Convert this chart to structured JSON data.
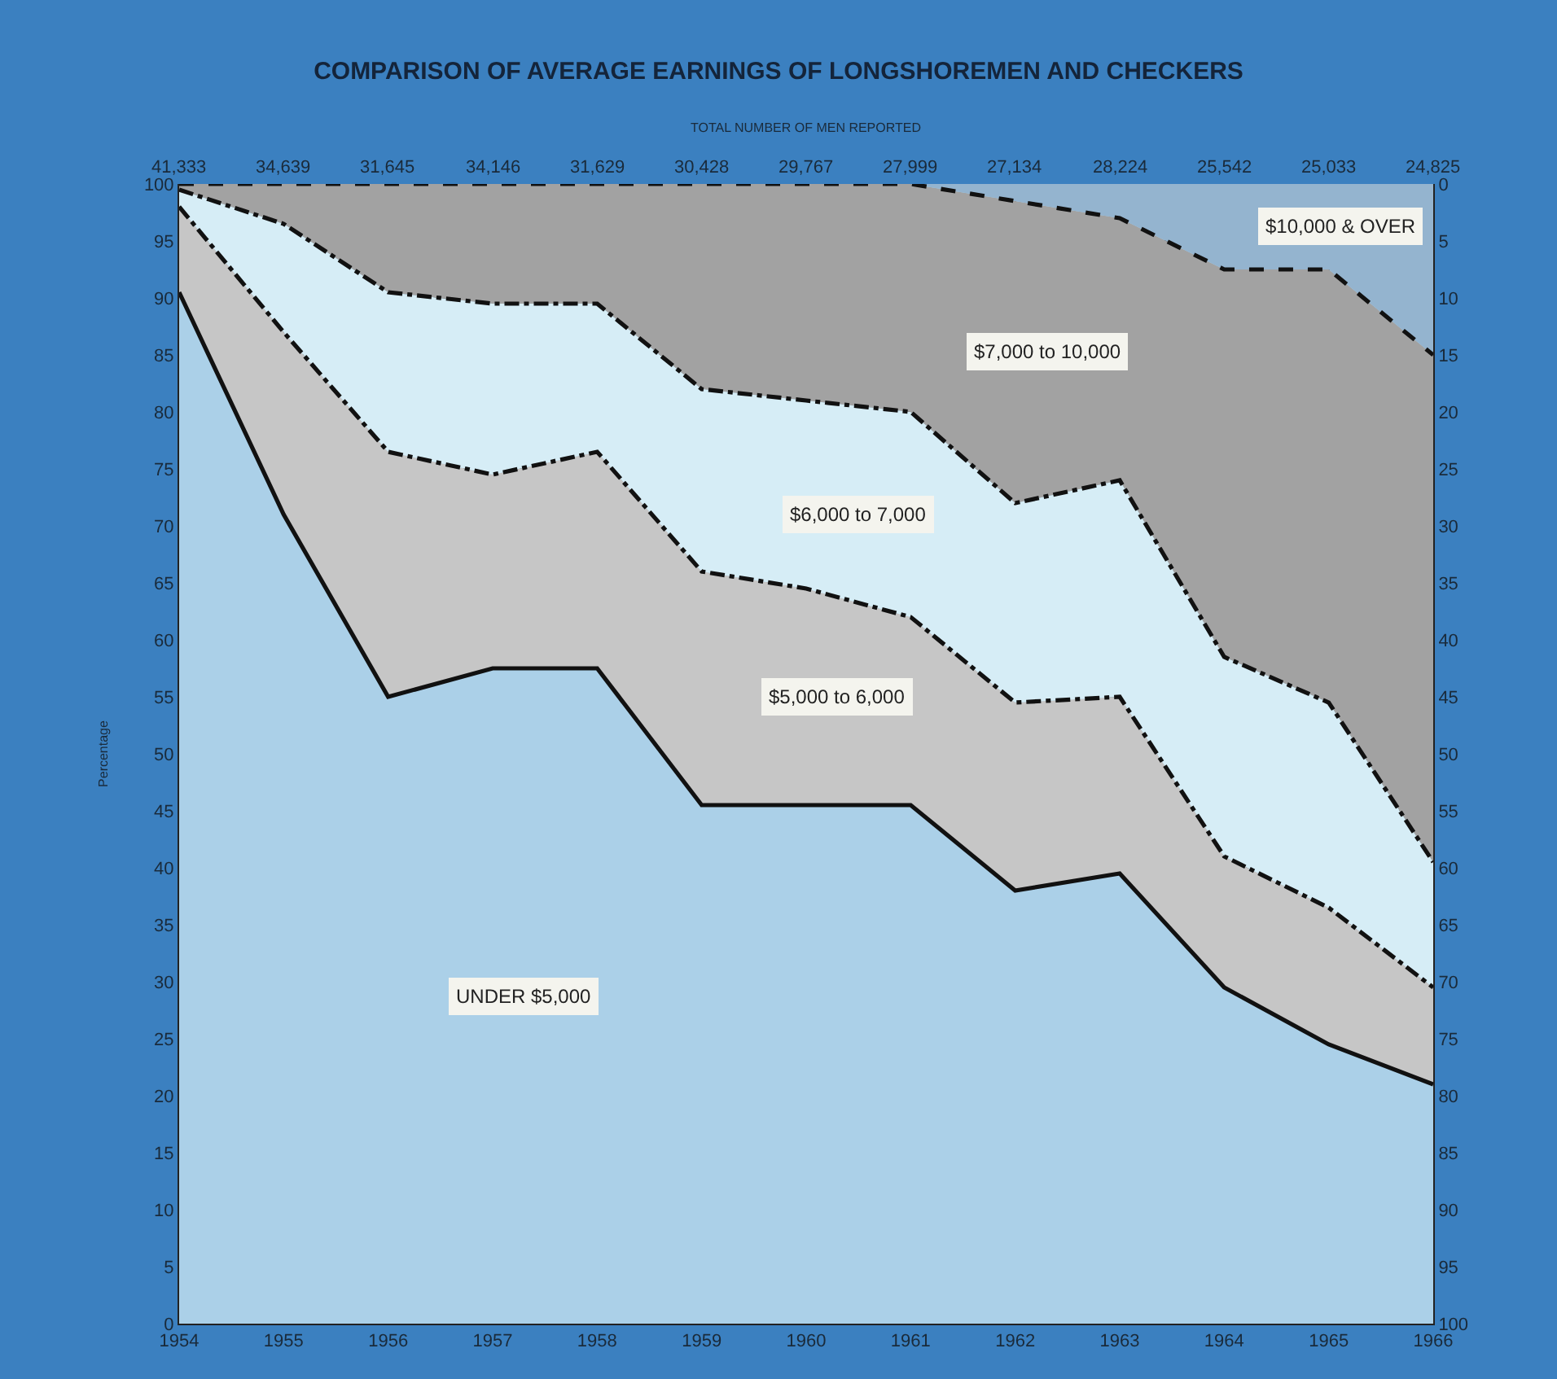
{
  "chart_data": {
    "type": "area",
    "stacked": true,
    "title": "COMPARISON OF AVERAGE EARNINGS OF LONGSHOREMEN AND CHECKERS",
    "subtitle": "TOTAL NUMBER OF MEN REPORTED",
    "ylabel": "Percentage",
    "x": [
      1954,
      1955,
      1956,
      1957,
      1958,
      1959,
      1960,
      1961,
      1962,
      1963,
      1964,
      1965,
      1966
    ],
    "series": [
      {
        "name": "UNDER $5,000",
        "color": "#abd0e8",
        "line_style": "solid",
        "values": [
          90.5,
          71,
          55,
          57.5,
          57.5,
          45.5,
          45.5,
          45.5,
          38,
          39.5,
          29.5,
          24.5,
          21
        ]
      },
      {
        "name": "$5,000 to 6,000",
        "color": "#c6c6c6",
        "line_style": "dashdot",
        "values": [
          7.5,
          16,
          21.5,
          17,
          19,
          20.5,
          19,
          16.5,
          16.5,
          15.5,
          11.5,
          12,
          8.5
        ]
      },
      {
        "name": "$6,000 to 7,000",
        "color": "#d6edf6",
        "line_style": "dashdot",
        "values": [
          1.5,
          9.5,
          14,
          15,
          13,
          16,
          16.5,
          18,
          17.5,
          19,
          17.5,
          18,
          11
        ]
      },
      {
        "name": "$7,000 to 10,000",
        "color": "#a2a2a2",
        "line_style": "dashed",
        "values": [
          0.5,
          3.5,
          9.5,
          10.5,
          10.5,
          18,
          19,
          20,
          26.5,
          23,
          34,
          38,
          44.5
        ]
      },
      {
        "name": "$10,000 & OVER",
        "color": "#94b4cf",
        "values": [
          0,
          0,
          0,
          0,
          0,
          0,
          0,
          0,
          1.5,
          3,
          7.5,
          7.5,
          15
        ]
      }
    ],
    "xlim": [
      1954,
      1966
    ],
    "xticks": [
      1954,
      1955,
      1956,
      1957,
      1958,
      1959,
      1960,
      1961,
      1962,
      1963,
      1964,
      1965,
      1966
    ],
    "annotations": [
      "41,333",
      "34,639",
      "31,645",
      "34,146",
      "31,629",
      "30,428",
      "29,767",
      "27,999",
      "27,134",
      "28,224",
      "25,542",
      "25,033",
      "24,825"
    ],
    "ylim": [
      0,
      100
    ],
    "yticks": [
      0,
      5,
      10,
      15,
      20,
      25,
      30,
      35,
      40,
      45,
      50,
      55,
      60,
      65,
      70,
      75,
      80,
      85,
      90,
      95,
      100
    ],
    "y2lim": [
      100,
      0
    ],
    "y2ticks": [
      0,
      5,
      10,
      15,
      20,
      25,
      30,
      35,
      40,
      45,
      50,
      55,
      60,
      65,
      70,
      75,
      80,
      85,
      90,
      95,
      100
    ],
    "grid": true
  }
}
